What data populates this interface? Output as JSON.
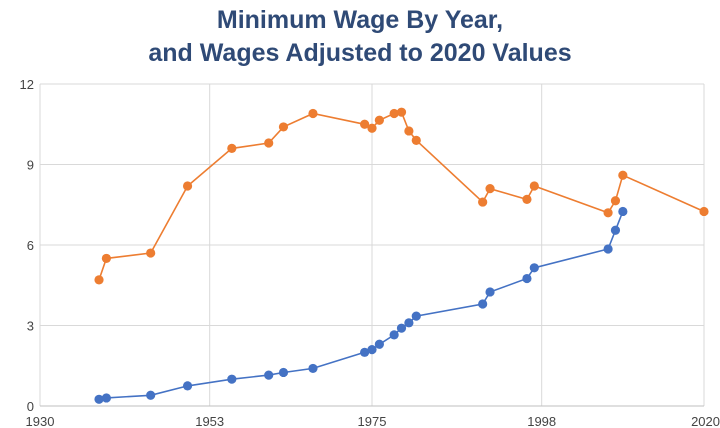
{
  "chart_data": {
    "type": "line",
    "title_lines": [
      "Minimum Wage By Year,",
      "and Wages Adjusted to 2020 Values"
    ],
    "xlabel": "",
    "ylabel": "",
    "xlim": [
      1930,
      2020
    ],
    "ylim": [
      0,
      12
    ],
    "xticks": [
      1930,
      1953,
      1975,
      1998,
      2020
    ],
    "yticks": [
      0,
      3,
      6,
      9,
      12
    ],
    "grid": true,
    "legend": "none",
    "series": [
      {
        "color": "#ed7d31",
        "points": [
          [
            1938,
            4.7
          ],
          [
            1939,
            5.5
          ],
          [
            1945,
            5.7
          ],
          [
            1950,
            8.2
          ],
          [
            1956,
            9.6
          ],
          [
            1961,
            9.8
          ],
          [
            1963,
            10.4
          ],
          [
            1967,
            10.9
          ],
          [
            1974,
            10.5
          ],
          [
            1975,
            10.35
          ],
          [
            1976,
            10.65
          ],
          [
            1978,
            10.9
          ],
          [
            1979,
            10.95
          ],
          [
            1980,
            10.25
          ],
          [
            1981,
            9.9
          ],
          [
            1990,
            7.6
          ],
          [
            1991,
            8.1
          ],
          [
            1996,
            7.7
          ],
          [
            1997,
            8.2
          ],
          [
            2007,
            7.2
          ],
          [
            2008,
            7.65
          ],
          [
            2009,
            8.6
          ],
          [
            2020,
            7.25
          ]
        ]
      },
      {
        "color": "#4472c4",
        "points": [
          [
            1938,
            0.25
          ],
          [
            1939,
            0.3
          ],
          [
            1945,
            0.4
          ],
          [
            1950,
            0.75
          ],
          [
            1956,
            1.0
          ],
          [
            1961,
            1.15
          ],
          [
            1963,
            1.25
          ],
          [
            1967,
            1.4
          ],
          [
            1974,
            2.0
          ],
          [
            1975,
            2.1
          ],
          [
            1976,
            2.3
          ],
          [
            1978,
            2.65
          ],
          [
            1979,
            2.9
          ],
          [
            1980,
            3.1
          ],
          [
            1981,
            3.35
          ],
          [
            1990,
            3.8
          ],
          [
            1991,
            4.25
          ],
          [
            1996,
            4.75
          ],
          [
            1997,
            5.15
          ],
          [
            2007,
            5.85
          ],
          [
            2008,
            6.55
          ],
          [
            2009,
            7.25
          ]
        ]
      }
    ]
  }
}
